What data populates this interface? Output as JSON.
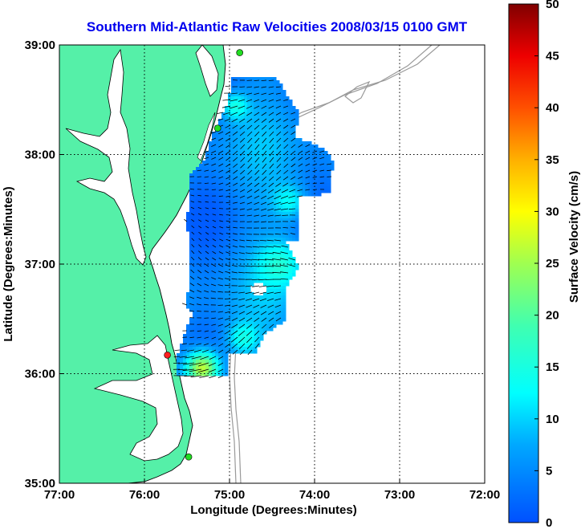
{
  "title": "Southern Mid-Atlantic Raw Velocities 2008/03/15 0100 GMT",
  "axes": {
    "xlabel": "Longitude (Degrees:Minutes)",
    "ylabel": "Latitude (Degrees:Minutes)",
    "xticks": [
      "77:00",
      "76:00",
      "75:00",
      "74:00",
      "73:00",
      "72:00"
    ],
    "yticks": [
      "39:00",
      "38:00",
      "37:00",
      "36:00",
      "35:00"
    ],
    "xlim_west_deg": [
      77,
      72
    ],
    "ylim_north_deg": [
      35,
      39
    ],
    "grid": "dotted"
  },
  "colorbar": {
    "label": "Surface Velocity (cm/s)",
    "ticks": [
      "50",
      "45",
      "40",
      "35",
      "30",
      "25",
      "20",
      "15",
      "10",
      "5",
      "0"
    ],
    "range_cm_s": [
      0,
      50
    ],
    "colormap": "jet"
  },
  "colors": {
    "land": "#55f0a8",
    "coastline": "#000000",
    "bathymetry": "#999999",
    "vectors": "#000000",
    "site_active": "#22dd22",
    "site_alert": "#ff2020",
    "title": "#0000ee"
  },
  "stations": [
    {
      "lon": -74.88,
      "lat": 38.93,
      "status": "active"
    },
    {
      "lon": -75.14,
      "lat": 38.24,
      "status": "active"
    },
    {
      "lon": -75.73,
      "lat": 36.17,
      "status": "alert"
    },
    {
      "lon": -75.48,
      "lat": 35.24,
      "status": "active"
    }
  ]
}
